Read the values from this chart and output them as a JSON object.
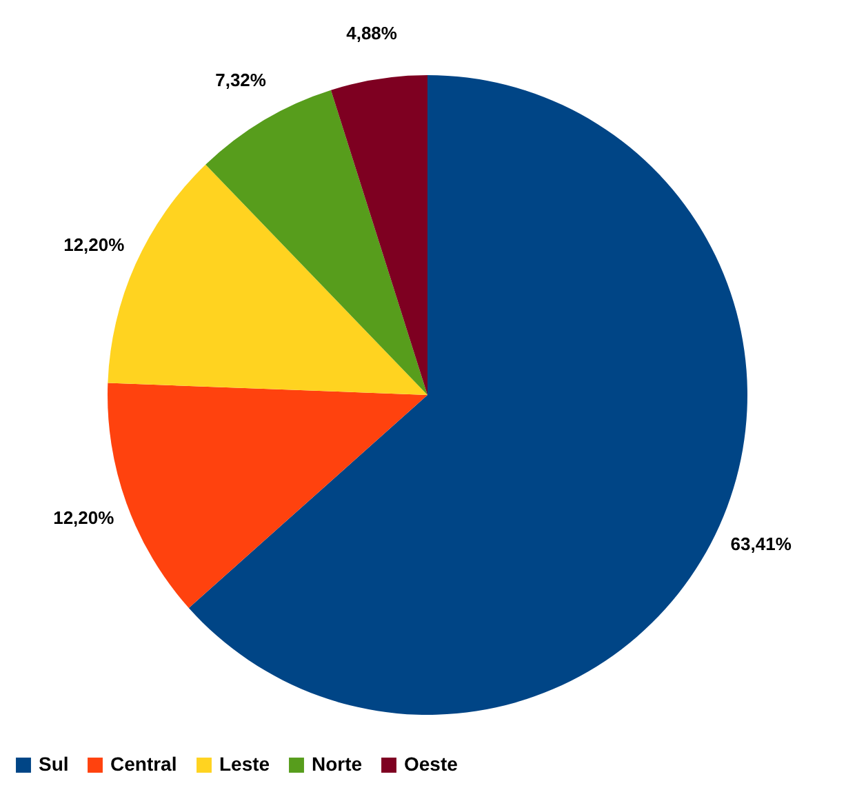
{
  "chart_data": {
    "type": "pie",
    "categories": [
      "Sul",
      "Central",
      "Leste",
      "Norte",
      "Oeste"
    ],
    "values": [
      63.41,
      12.2,
      12.2,
      7.32,
      4.88
    ],
    "colors": [
      "#004586",
      "#ff420e",
      "#ffd320",
      "#579d1c",
      "#7e0021"
    ],
    "value_labels": [
      "63,41%",
      "12,20%",
      "12,20%",
      "7,32%",
      "4,88%"
    ],
    "legend": "bottom"
  }
}
